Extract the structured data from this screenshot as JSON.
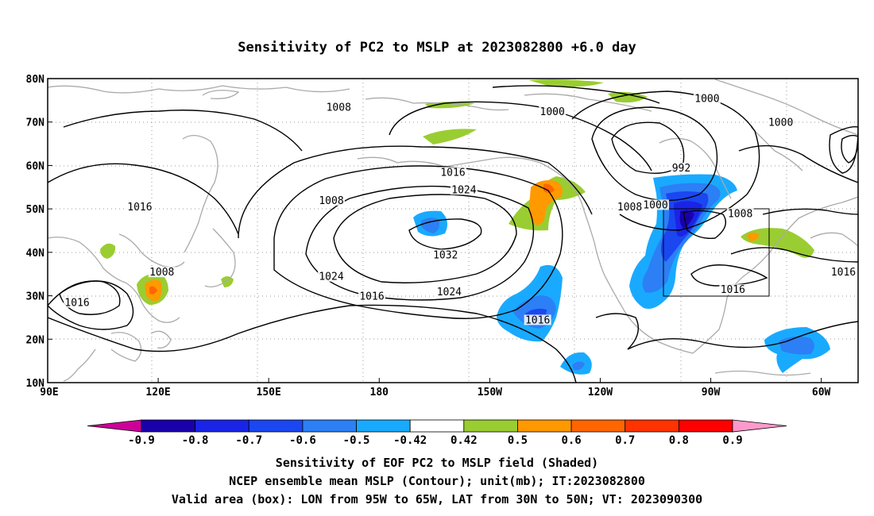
{
  "title": "Sensitivity of PC2 to MSLP at 2023082800 +6.0 day",
  "map": {
    "lon_range": [
      "90E",
      "310E (50W)"
    ],
    "lat_range": [
      "10N",
      "80N"
    ],
    "grid": "dotted",
    "lon_ticks": [
      "90E",
      "120E",
      "150E",
      "180",
      "150W",
      "120W",
      "90W",
      "60W"
    ],
    "lat_ticks": [
      "80N",
      "70N",
      "60N",
      "50N",
      "40N",
      "30N",
      "20N",
      "10N"
    ],
    "valid_box": {
      "lon_west": -95,
      "lon_east": -65,
      "lat_south": 30,
      "lat_north": 50
    }
  },
  "contour_labels": [
    {
      "text": "1008",
      "lon": 169,
      "lat": 73
    },
    {
      "text": "1000",
      "lon": 227,
      "lat": 72
    },
    {
      "text": "1000",
      "lon": 269,
      "lat": 75
    },
    {
      "text": "1000",
      "lon": 289,
      "lat": 69.5
    },
    {
      "text": "992",
      "lon": 262,
      "lat": 59
    },
    {
      "text": "1016",
      "lon": 115,
      "lat": 50
    },
    {
      "text": "1008",
      "lon": 167,
      "lat": 51.5
    },
    {
      "text": "1016",
      "lon": 200,
      "lat": 58
    },
    {
      "text": "1024",
      "lon": 203,
      "lat": 54
    },
    {
      "text": "1008",
      "lon": 248,
      "lat": 50
    },
    {
      "text": "1000",
      "lon": 255,
      "lat": 50.5
    },
    {
      "text": "1008",
      "lon": 278,
      "lat": 48.5
    },
    {
      "text": "1032",
      "lon": 198,
      "lat": 39
    },
    {
      "text": "1024",
      "lon": 167,
      "lat": 34
    },
    {
      "text": "1024",
      "lon": 199,
      "lat": 30.5
    },
    {
      "text": "1016",
      "lon": 178,
      "lat": 29.5
    },
    {
      "text": "1016",
      "lon": 223,
      "lat": 24
    },
    {
      "text": "1016",
      "lon": 276,
      "lat": 31
    },
    {
      "text": "1016",
      "lon": 306,
      "lat": 35
    },
    {
      "text": "1008",
      "lon": 121,
      "lat": 35
    },
    {
      "text": "1016",
      "lon": 98,
      "lat": 28
    }
  ],
  "colorbar": {
    "labels": [
      "-0.9",
      "-0.8",
      "-0.7",
      "-0.6",
      "-0.5",
      "-0.42",
      "0.42",
      "0.5",
      "0.6",
      "0.7",
      "0.8",
      "0.9"
    ],
    "colors": [
      "#cc0099",
      "#1a00aa",
      "#1a24e6",
      "#1a47f0",
      "#2c7ff5",
      "#19aaff",
      "#ffffff",
      "#9acd32",
      "#ff9900",
      "#ff6600",
      "#ff3300",
      "#ff0000",
      "#ff99cc"
    ]
  },
  "footer": {
    "line1": "Sensitivity of EOF PC2 to MSLP field (Shaded)",
    "line2": "NCEP ensemble mean MSLP (Contour); unit(mb); IT:2023082800",
    "line3": "Valid area (box): LON from 95W to 65W, LAT from 30N to 50N; VT: 2023090300"
  }
}
